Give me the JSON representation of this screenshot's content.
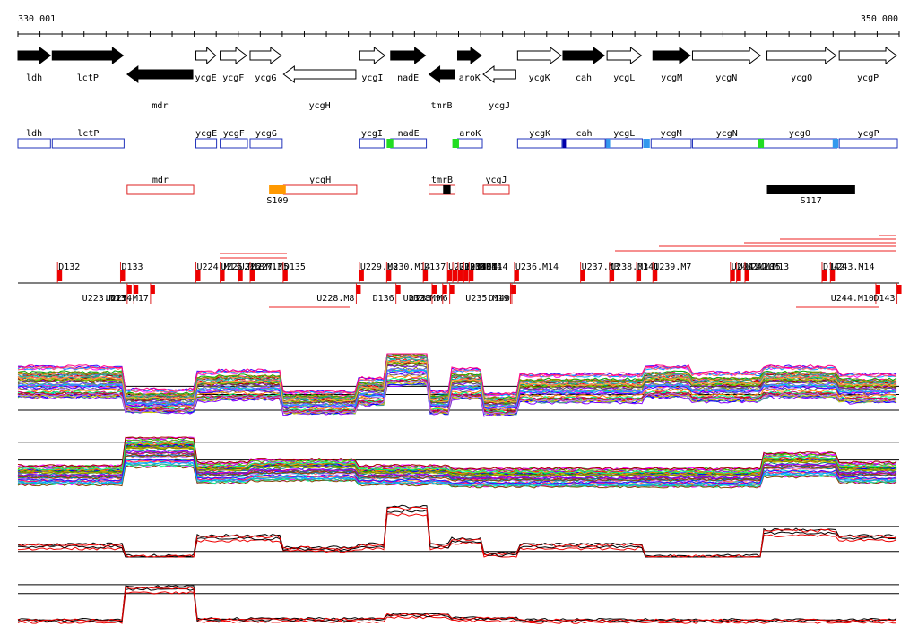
{
  "ruler": {
    "start_label": "330 001",
    "end_label": "350 000",
    "start": 330001,
    "end": 350000
  },
  "genes": [
    {
      "name": "ldh",
      "start": 330001,
      "end": 330780,
      "strand": "+",
      "filled": true,
      "row": "top"
    },
    {
      "name": "lctP",
      "start": 330780,
      "end": 332430,
      "strand": "+",
      "filled": true,
      "row": "top"
    },
    {
      "name": "mdr",
      "start": 332480,
      "end": 334010,
      "strand": "-",
      "filled": true,
      "row": "bottom"
    },
    {
      "name": "ycgE",
      "start": 334040,
      "end": 334530,
      "strand": "+",
      "filled": false,
      "row": "top"
    },
    {
      "name": "ycgF",
      "start": 334590,
      "end": 335230,
      "strand": "+",
      "filled": false,
      "row": "top"
    },
    {
      "name": "ycgG",
      "start": 335270,
      "end": 336020,
      "strand": "+",
      "filled": false,
      "row": "top"
    },
    {
      "name": "ycgH",
      "start": 336030,
      "end": 337710,
      "strand": "-",
      "filled": false,
      "row": "bottom"
    },
    {
      "name": "ycgI",
      "start": 337760,
      "end": 338370,
      "strand": "+",
      "filled": false,
      "row": "top"
    },
    {
      "name": "nadE",
      "start": 338460,
      "end": 339290,
      "strand": "+",
      "filled": true,
      "row": "top"
    },
    {
      "name": "tmrB",
      "start": 339330,
      "end": 339940,
      "strand": "-",
      "filled": true,
      "row": "bottom"
    },
    {
      "name": "aroK",
      "start": 339980,
      "end": 340560,
      "strand": "+",
      "filled": true,
      "row": "top"
    },
    {
      "name": "ycgJ",
      "start": 340560,
      "end": 341340,
      "strand": "-",
      "filled": false,
      "row": "bottom"
    },
    {
      "name": "ycgK",
      "start": 341340,
      "end": 342370,
      "strand": "+",
      "filled": false,
      "row": "top"
    },
    {
      "name": "cah",
      "start": 342370,
      "end": 343350,
      "strand": "+",
      "filled": true,
      "row": "top"
    },
    {
      "name": "ycgL",
      "start": 343370,
      "end": 344190,
      "strand": "+",
      "filled": false,
      "row": "top"
    },
    {
      "name": "ycgM",
      "start": 344410,
      "end": 345300,
      "strand": "+",
      "filled": true,
      "row": "top"
    },
    {
      "name": "ycgN",
      "start": 345310,
      "end": 346890,
      "strand": "+",
      "filled": false,
      "row": "top"
    },
    {
      "name": "ycgO",
      "start": 347000,
      "end": 348610,
      "strand": "+",
      "filled": false,
      "row": "top"
    },
    {
      "name": "ycgP",
      "start": 348640,
      "end": 349980,
      "strand": "+",
      "filled": false,
      "row": "top"
    }
  ],
  "operons": [
    {
      "name": "ldh",
      "start": 330001,
      "end": 330760,
      "row": 1
    },
    {
      "name": "lctP",
      "start": 330780,
      "end": 332430,
      "row": 1
    },
    {
      "name": "mdr",
      "start": 332480,
      "end": 334010,
      "row": 2
    },
    {
      "name": "ycgE",
      "start": 334040,
      "end": 334530,
      "row": 1
    },
    {
      "name": "ycgF",
      "start": 334590,
      "end": 335230,
      "row": 1
    },
    {
      "name": "ycgG",
      "start": 335270,
      "end": 336020,
      "row": 1
    },
    {
      "name": "ycgH",
      "start": 336030,
      "end": 337710,
      "row": 2
    },
    {
      "name": "ycgI",
      "start": 337760,
      "end": 338330,
      "row": 1
    },
    {
      "name": "nadE",
      "start": 338460,
      "end": 339290,
      "row": 1
    },
    {
      "name": "tmrB",
      "start": 339330,
      "end": 339940,
      "row": 2
    },
    {
      "name": "aroK",
      "start": 339980,
      "end": 340560,
      "row": 1
    },
    {
      "name": "ycgJ",
      "start": 340560,
      "end": 341170,
      "row": 2
    },
    {
      "name": "ycgK",
      "start": 341340,
      "end": 342370,
      "row": 1
    },
    {
      "name": "cah",
      "start": 342370,
      "end": 343350,
      "row": 1
    },
    {
      "name": "ycgL",
      "start": 343350,
      "end": 344190,
      "row": 1
    },
    {
      "name": "ycgM",
      "start": 344370,
      "end": 345300,
      "row": 1
    },
    {
      "name": "ycgN",
      "start": 345310,
      "end": 346890,
      "row": 1
    },
    {
      "name": "ycgO",
      "start": 346890,
      "end": 348610,
      "row": 1
    },
    {
      "name": "ycgP",
      "start": 348640,
      "end": 349980,
      "row": 1
    }
  ],
  "operon_marks": [
    {
      "pos": 338370,
      "width": 150,
      "color": "#22dd22",
      "row": 1
    },
    {
      "pos": 339860,
      "width": 150,
      "color": "#22dd22",
      "row": 1
    },
    {
      "pos": 342370,
      "width": 70,
      "color": "#0000aa",
      "row": 1
    },
    {
      "pos": 343350,
      "width": 90,
      "color": "#3399ee",
      "row": 1
    },
    {
      "pos": 344190,
      "width": 150,
      "color": "#3399ee",
      "row": 1
    },
    {
      "pos": 346800,
      "width": 130,
      "color": "#22dd22",
      "row": 1
    },
    {
      "pos": 348490,
      "width": 130,
      "color": "#3399ee",
      "row": 1
    }
  ],
  "special_blocks": [
    {
      "name": "S109",
      "start": 335700,
      "end": 336080,
      "color": "#ff9900",
      "labeled": true
    },
    {
      "name": "",
      "start": 339650,
      "end": 339820,
      "color": "#000000",
      "labeled": false
    },
    {
      "name": "S117",
      "start": 347000,
      "end": 349000,
      "color": "#000000",
      "labeled": true
    }
  ],
  "features_above": [
    {
      "name": "D132",
      "pos": 330900,
      "labeled": true
    },
    {
      "name": "D133",
      "pos": 332330,
      "labeled": true
    },
    {
      "name": "U224.M13",
      "pos": 334040,
      "labeled": true
    },
    {
      "name": "U225.M18",
      "pos": 334590,
      "labeled": true
    },
    {
      "name": "U226.M13",
      "pos": 335000,
      "labeled": true
    },
    {
      "name": "U227.M5",
      "pos": 335270,
      "labeled": true
    },
    {
      "name": "D135",
      "pos": 336020,
      "labeled": true
    },
    {
      "name": "U229.M8",
      "pos": 337750,
      "labeled": true
    },
    {
      "name": "U230.M14",
      "pos": 338370,
      "labeled": true
    },
    {
      "name": "D137",
      "pos": 339200,
      "labeled": true
    },
    {
      "name": "U231.M10",
      "pos": 339750,
      "labeled": true
    },
    {
      "name": "U232.M14",
      "pos": 339870,
      "labeled": true
    },
    {
      "name": "U233.M14",
      "pos": 339990,
      "labeled": true
    },
    {
      "name": "U234.M14",
      "pos": 340120,
      "labeled": true
    },
    {
      "name": "D139",
      "pos": 340240,
      "labeled": true
    },
    {
      "name": "U236.M14",
      "pos": 341270,
      "labeled": true
    },
    {
      "name": "U237.M3",
      "pos": 342770,
      "labeled": true
    },
    {
      "name": "U238.M3",
      "pos": 343430,
      "labeled": true
    },
    {
      "name": "D141",
      "pos": 344040,
      "labeled": true
    },
    {
      "name": "U239.M7",
      "pos": 344410,
      "labeled": true
    },
    {
      "name": "U240.M10",
      "pos": 346170,
      "labeled": true
    },
    {
      "name": "U241.M15",
      "pos": 346310,
      "labeled": true
    },
    {
      "name": "U242.M13",
      "pos": 346500,
      "labeled": true
    },
    {
      "name": "D142",
      "pos": 348250,
      "labeled": true
    },
    {
      "name": "U243.M14",
      "pos": 348440,
      "labeled": true
    }
  ],
  "features_below": [
    {
      "name": "U223.M13",
      "pos": 332480,
      "labeled": true
    },
    {
      "name": "D134",
      "pos": 332630,
      "labeled": true
    },
    {
      "name": "U225.M17",
      "pos": 333010,
      "labeled": true
    },
    {
      "name": "U228.M8",
      "pos": 337680,
      "labeled": true
    },
    {
      "name": "D136",
      "pos": 338580,
      "labeled": true
    },
    {
      "name": "D138",
      "pos": 339400,
      "labeled": true
    },
    {
      "name": "U232.M9",
      "pos": 339640,
      "labeled": true
    },
    {
      "name": "U233.M6",
      "pos": 339800,
      "labeled": true
    },
    {
      "name": "U235.M19",
      "pos": 341180,
      "labeled": true
    },
    {
      "name": "D140",
      "pos": 341210,
      "labeled": true
    },
    {
      "name": "U244.M10",
      "pos": 349470,
      "labeled": true
    },
    {
      "name": "D143",
      "pos": 349950,
      "labeled": true
    }
  ],
  "palette": [
    "#ff0000",
    "#0000ff",
    "#00aa00",
    "#ff00ff",
    "#00cccc",
    "#cccc00",
    "#ff8800",
    "#8800ff",
    "#008888",
    "#888800",
    "#ff0088",
    "#00ff88",
    "#884400",
    "#4400ff",
    "#aa0000",
    "#00aaff",
    "#66cc00",
    "#cc0066",
    "#555555",
    "#ff6666",
    "#6666ff",
    "#33aa88",
    "#bb77ff",
    "#ffaa33"
  ],
  "chart_data": [
    {
      "type": "line",
      "title": "",
      "xlabel": "",
      "ylabel": "",
      "x_range": [
        330001,
        350000
      ],
      "series_count": 48,
      "segments": [
        {
          "start": 330001,
          "end": 332430,
          "level": 0.55
        },
        {
          "start": 332430,
          "end": 334010,
          "level": 0.25
        },
        {
          "start": 334010,
          "end": 334530,
          "level": 0.48
        },
        {
          "start": 334530,
          "end": 336020,
          "level": 0.5
        },
        {
          "start": 336020,
          "end": 337710,
          "level": 0.22
        },
        {
          "start": 337710,
          "end": 338370,
          "level": 0.4
        },
        {
          "start": 338370,
          "end": 339290,
          "level": 0.8
        },
        {
          "start": 339290,
          "end": 339800,
          "level": 0.22
        },
        {
          "start": 339800,
          "end": 340560,
          "level": 0.52
        },
        {
          "start": 340560,
          "end": 341340,
          "level": 0.2
        },
        {
          "start": 341340,
          "end": 344190,
          "level": 0.45
        },
        {
          "start": 344190,
          "end": 345300,
          "level": 0.55
        },
        {
          "start": 345300,
          "end": 346890,
          "level": 0.47
        },
        {
          "start": 346890,
          "end": 348610,
          "level": 0.55
        },
        {
          "start": 348610,
          "end": 350000,
          "level": 0.45
        }
      ],
      "reference_lines": [
        0.48,
        0.35,
        0.1
      ]
    },
    {
      "type": "line",
      "title": "",
      "xlabel": "",
      "ylabel": "",
      "x_range": [
        330001,
        350000
      ],
      "series_count": 40,
      "segments": [
        {
          "start": 330001,
          "end": 332430,
          "level": 0.25
        },
        {
          "start": 332430,
          "end": 334010,
          "level": 0.7
        },
        {
          "start": 334010,
          "end": 335230,
          "level": 0.3
        },
        {
          "start": 335230,
          "end": 337710,
          "level": 0.35
        },
        {
          "start": 337710,
          "end": 339800,
          "level": 0.25
        },
        {
          "start": 339800,
          "end": 341340,
          "level": 0.2
        },
        {
          "start": 341340,
          "end": 346890,
          "level": 0.2
        },
        {
          "start": 346890,
          "end": 348610,
          "level": 0.45
        },
        {
          "start": 348610,
          "end": 350000,
          "level": 0.3
        }
      ],
      "reference_lines": [
        0.9,
        0.55
      ]
    },
    {
      "type": "line",
      "title": "",
      "xlabel": "",
      "ylabel": "",
      "x_range": [
        330001,
        350000
      ],
      "series_count": 4,
      "segments": [
        {
          "start": 330001,
          "end": 332430,
          "level": 0.2
        },
        {
          "start": 332430,
          "end": 334010,
          "level": 0.0
        },
        {
          "start": 334010,
          "end": 336020,
          "level": 0.35
        },
        {
          "start": 336020,
          "end": 337710,
          "level": 0.15
        },
        {
          "start": 337710,
          "end": 338370,
          "level": 0.2
        },
        {
          "start": 338370,
          "end": 339290,
          "level": 0.85
        },
        {
          "start": 339290,
          "end": 339800,
          "level": 0.2
        },
        {
          "start": 339800,
          "end": 340560,
          "level": 0.3
        },
        {
          "start": 340560,
          "end": 341340,
          "level": 0.05
        },
        {
          "start": 341340,
          "end": 344190,
          "level": 0.2
        },
        {
          "start": 344190,
          "end": 346890,
          "level": 0.0
        },
        {
          "start": 346890,
          "end": 348610,
          "level": 0.45
        },
        {
          "start": 348610,
          "end": 350000,
          "level": 0.35
        }
      ],
      "reference_lines": [
        0.55,
        0.1
      ]
    },
    {
      "type": "line",
      "title": "",
      "xlabel": "",
      "ylabel": "",
      "x_range": [
        330001,
        350000
      ],
      "series_count": 4,
      "segments": [
        {
          "start": 330001,
          "end": 332430,
          "level": 0.08
        },
        {
          "start": 332430,
          "end": 334010,
          "level": 0.8
        },
        {
          "start": 334010,
          "end": 338370,
          "level": 0.1
        },
        {
          "start": 338370,
          "end": 339800,
          "level": 0.2
        },
        {
          "start": 339800,
          "end": 341340,
          "level": 0.12
        },
        {
          "start": 341340,
          "end": 350000,
          "level": 0.08
        }
      ],
      "reference_lines": [
        0.9,
        0.7
      ]
    }
  ]
}
